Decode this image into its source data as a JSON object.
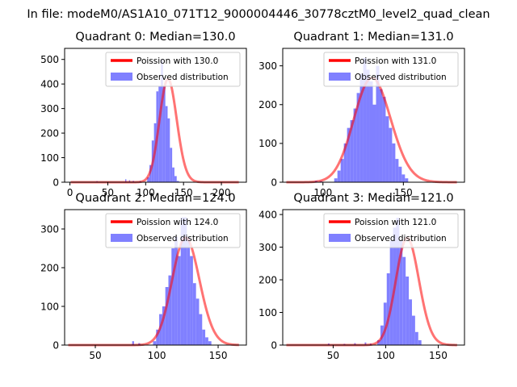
{
  "suptitle": "In file: modeM0/AS1A10_071T12_9000004446_30778cztM0_level2_quad_clean",
  "colors": {
    "poisson": "#ff0000",
    "observed": "#8080ff"
  },
  "chart_data": [
    {
      "type": "bar",
      "title": "Quadrant 0: Median=130.0",
      "xlim": [
        -7,
        233
      ],
      "ylim": [
        0,
        545
      ],
      "xticks": [
        0,
        50,
        100,
        150,
        200
      ],
      "yticks": [
        0,
        100,
        200,
        300,
        400,
        500
      ],
      "legend": [
        "Poission with 130.0",
        "Observed distribution"
      ],
      "poisson_mean": 130,
      "hist": {
        "bin_start": 102,
        "bin_width": 3,
        "values": [
          20,
          70,
          170,
          240,
          370,
          390,
          500,
          390,
          310,
          260,
          140,
          60,
          25,
          5
        ],
        "outliers": [
          [
            35,
            5
          ],
          [
            73,
            12
          ],
          [
            78,
            8
          ],
          [
            83,
            6
          ],
          [
            92,
            5
          ]
        ]
      }
    },
    {
      "type": "bar",
      "title": "Quadrant 1: Median=131.0",
      "xlim": [
        75,
        188
      ],
      "ylim": [
        0,
        345
      ],
      "xticks": [
        100,
        150
      ],
      "yticks": [
        0,
        100,
        200,
        300
      ],
      "legend": [
        "Poission with 131.0",
        "Observed distribution"
      ],
      "poisson_mean": 131,
      "hist": {
        "bin_start": 107,
        "bin_width": 2,
        "values": [
          10,
          30,
          60,
          100,
          140,
          160,
          190,
          230,
          280,
          320,
          290,
          260,
          200,
          300,
          240,
          220,
          170,
          140,
          100,
          60,
          40,
          20,
          10
        ],
        "outliers": [
          [
            95,
            4
          ],
          [
            98,
            3
          ]
        ]
      }
    },
    {
      "type": "bar",
      "title": "Quadrant 2: Median=124.0",
      "xlim": [
        25,
        173
      ],
      "ylim": [
        0,
        350
      ],
      "xticks": [
        50,
        100,
        150
      ],
      "yticks": [
        0,
        100,
        200,
        300
      ],
      "legend": [
        "Poission with 124.0",
        "Observed distribution"
      ],
      "poisson_mean": 124,
      "hist": {
        "bin_start": 97,
        "bin_width": 2.5,
        "values": [
          10,
          40,
          80,
          100,
          150,
          180,
          250,
          280,
          230,
          330,
          330,
          280,
          230,
          160,
          120,
          80,
          40,
          20,
          10
        ],
        "outliers": [
          [
            80,
            10
          ],
          [
            85,
            5
          ]
        ]
      }
    },
    {
      "type": "bar",
      "title": "Quadrant 3: Median=121.0",
      "xlim": [
        2,
        175
      ],
      "ylim": [
        0,
        415
      ],
      "xticks": [
        50,
        100,
        150
      ],
      "yticks": [
        0,
        100,
        200,
        300,
        400
      ],
      "legend": [
        "Poission with 121.0",
        "Observed distribution"
      ],
      "poisson_mean": 121,
      "hist": {
        "bin_start": 92,
        "bin_width": 3,
        "values": [
          15,
          60,
          130,
          220,
          320,
          360,
          390,
          320,
          270,
          210,
          140,
          90,
          40,
          15
        ],
        "outliers": [
          [
            45,
            5
          ],
          [
            60,
            4
          ],
          [
            70,
            6
          ],
          [
            80,
            8
          ],
          [
            85,
            5
          ]
        ]
      }
    }
  ]
}
